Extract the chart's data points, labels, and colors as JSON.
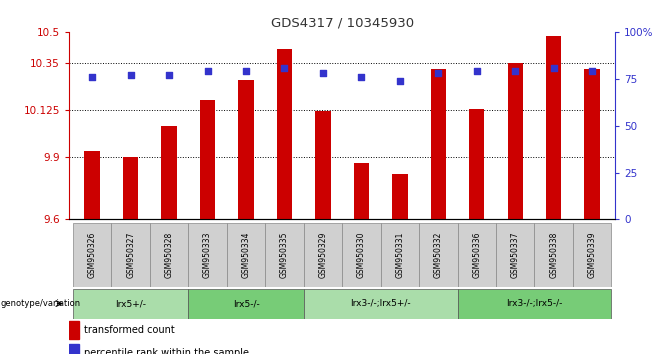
{
  "title": "GDS4317 / 10345930",
  "samples": [
    "GSM950326",
    "GSM950327",
    "GSM950328",
    "GSM950333",
    "GSM950334",
    "GSM950335",
    "GSM950329",
    "GSM950330",
    "GSM950331",
    "GSM950332",
    "GSM950336",
    "GSM950337",
    "GSM950338",
    "GSM950339"
  ],
  "transformed_counts": [
    9.93,
    9.9,
    10.05,
    10.175,
    10.27,
    10.42,
    10.12,
    9.87,
    9.82,
    10.32,
    10.13,
    10.35,
    10.48,
    10.32
  ],
  "percentile_ranks": [
    76,
    77,
    77,
    79,
    79,
    81,
    78,
    76,
    74,
    78,
    79,
    79,
    81,
    79
  ],
  "ylim_left": [
    9.6,
    10.5
  ],
  "ylim_right": [
    0,
    100
  ],
  "yticks_left": [
    9.6,
    9.9,
    10.125,
    10.35,
    10.5
  ],
  "ytick_labels_left": [
    "9.6",
    "9.9",
    "10.125",
    "10.35",
    "10.5"
  ],
  "yticks_right": [
    0,
    25,
    50,
    75,
    100
  ],
  "ytick_labels_right": [
    "0",
    "25",
    "50",
    "75",
    "100%"
  ],
  "hlines": [
    9.9,
    10.125,
    10.35
  ],
  "bar_color": "#CC0000",
  "dot_color": "#3333CC",
  "bar_bottom": 9.6,
  "groups": [
    {
      "label": "lrx5+/-",
      "start": 0,
      "end": 3,
      "color": "#aaddaa"
    },
    {
      "label": "lrx5-/-",
      "start": 3,
      "end": 6,
      "color": "#77cc77"
    },
    {
      "label": "lrx3-/-;lrx5+/-",
      "start": 6,
      "end": 10,
      "color": "#aaddaa"
    },
    {
      "label": "lrx3-/-;lrx5-/-",
      "start": 10,
      "end": 14,
      "color": "#77cc77"
    }
  ],
  "group_label_prefix": "genotype/variation",
  "legend_items": [
    {
      "color": "#CC0000",
      "label": "transformed count"
    },
    {
      "color": "#3333CC",
      "label": "percentile rank within the sample"
    }
  ],
  "title_color": "#333333",
  "left_axis_color": "#CC0000",
  "right_axis_color": "#3333CC",
  "bar_width": 0.4,
  "dot_size": 18
}
